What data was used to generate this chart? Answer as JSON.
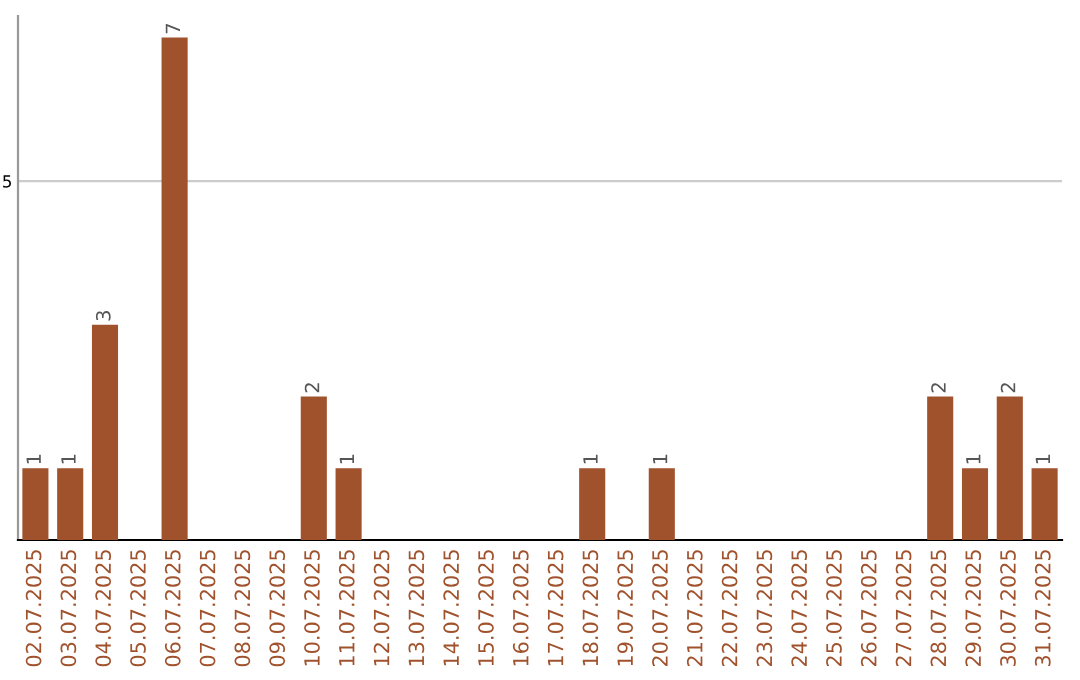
{
  "chart_data": {
    "type": "bar",
    "categories": [
      "02.07.2025",
      "03.07.2025",
      "04.07.2025",
      "05.07.2025",
      "06.07.2025",
      "07.07.2025",
      "08.07.2025",
      "09.07.2025",
      "10.07.2025",
      "11.07.2025",
      "12.07.2025",
      "13.07.2025",
      "14.07.2025",
      "15.07.2025",
      "16.07.2025",
      "17.07.2025",
      "18.07.2025",
      "19.07.2025",
      "20.07.2025",
      "21.07.2025",
      "22.07.2025",
      "23.07.2025",
      "24.07.2025",
      "25.07.2025",
      "26.07.2025",
      "27.07.2025",
      "28.07.2025",
      "29.07.2025",
      "30.07.2025",
      "31.07.2025"
    ],
    "values": [
      1,
      1,
      3,
      0,
      7,
      0,
      0,
      0,
      2,
      1,
      0,
      0,
      0,
      0,
      0,
      0,
      1,
      0,
      1,
      0,
      0,
      0,
      0,
      0,
      0,
      0,
      2,
      1,
      2,
      1
    ],
    "value_labels": [
      "1",
      "1",
      "3",
      null,
      "7",
      null,
      null,
      null,
      "2",
      "1",
      null,
      null,
      null,
      null,
      null,
      null,
      "1",
      null,
      "1",
      null,
      null,
      null,
      null,
      null,
      null,
      null,
      "2",
      "1",
      "2",
      "1"
    ],
    "color": "#a0522d",
    "ylim": [
      0,
      7.3
    ],
    "yticks": [
      5
    ],
    "grid": "y"
  }
}
